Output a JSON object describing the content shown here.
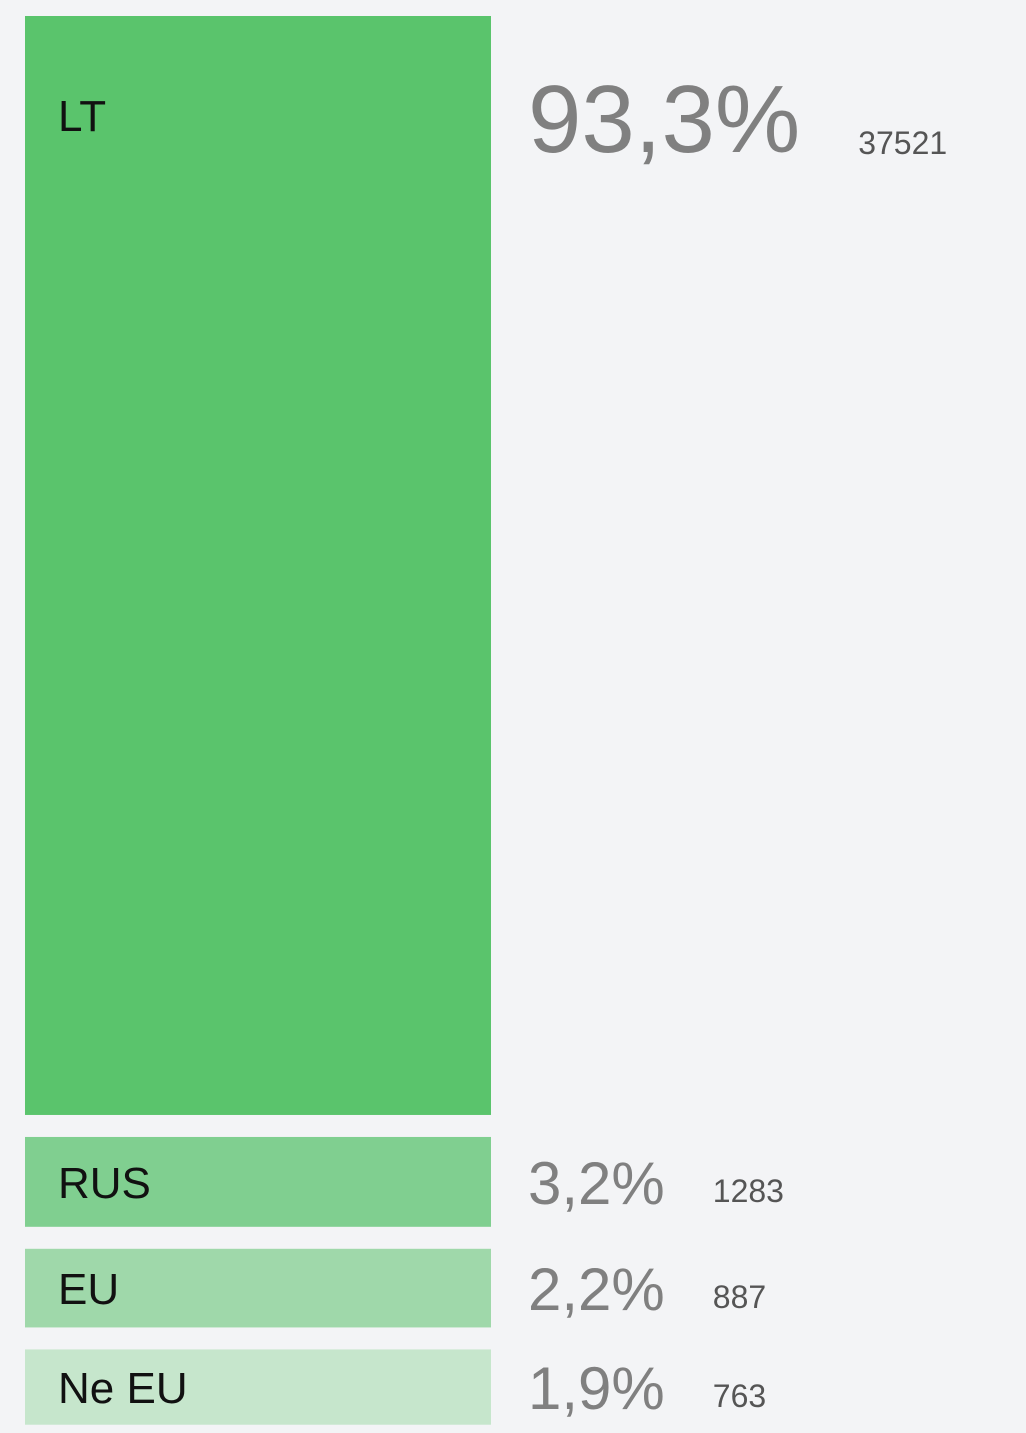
{
  "chart_data": {
    "type": "bar",
    "categories": [
      "LT",
      "RUS",
      "EU",
      "Ne EU"
    ],
    "values": [
      93.3,
      3.2,
      2.2,
      1.9
    ],
    "value_labels": [
      "93,3%",
      "3,2%",
      "2,2%",
      "1,9%"
    ],
    "counts": [
      37521,
      1283,
      887,
      763
    ],
    "colors": [
      "#5ac46c",
      "#80cf90",
      "#9fd8aa",
      "#c6e6cc"
    ]
  }
}
